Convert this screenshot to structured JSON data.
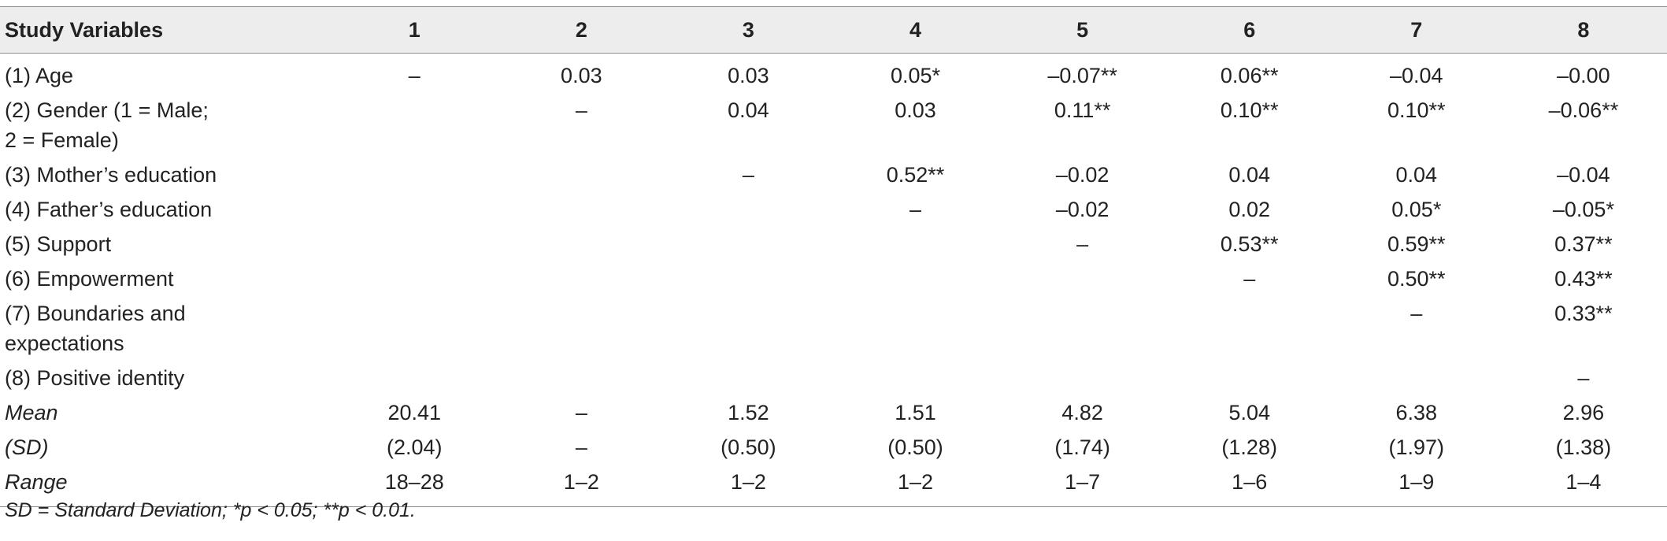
{
  "table": {
    "headers": [
      "Study Variables",
      "1",
      "2",
      "3",
      "4",
      "5",
      "6",
      "7",
      "8"
    ],
    "rows": [
      {
        "label": "(1) Age",
        "italic": false,
        "cells": [
          "–",
          "0.03",
          "0.03",
          "0.05*",
          "–0.07**",
          "0.06**",
          "–0.04",
          "–0.00"
        ]
      },
      {
        "label": "(2) Gender (1 = Male;\n2 =  Female)",
        "italic": false,
        "cells": [
          "",
          "–",
          "0.04",
          "0.03",
          "0.11**",
          "0.10**",
          "0.10**",
          "–0.06**"
        ]
      },
      {
        "label": "(3) Mother’s education",
        "italic": false,
        "cells": [
          "",
          "",
          "–",
          "0.52**",
          "–0.02",
          "0.04",
          "0.04",
          "–0.04"
        ]
      },
      {
        "label": "(4) Father’s education",
        "italic": false,
        "cells": [
          "",
          "",
          "",
          "–",
          "–0.02",
          "0.02",
          "0.05*",
          "–0.05*"
        ]
      },
      {
        "label": "(5) Support",
        "italic": false,
        "cells": [
          "",
          "",
          "",
          "",
          "–",
          "0.53**",
          "0.59**",
          "0.37**"
        ]
      },
      {
        "label": "(6) Empowerment",
        "italic": false,
        "cells": [
          "",
          "",
          "",
          "",
          "",
          "–",
          "0.50**",
          "0.43**"
        ]
      },
      {
        "label": "(7) Boundaries and\nexpectations",
        "italic": false,
        "cells": [
          "",
          "",
          "",
          "",
          "",
          "",
          "–",
          "0.33**"
        ]
      },
      {
        "label": "(8) Positive identity",
        "italic": false,
        "cells": [
          "",
          "",
          "",
          "",
          "",
          "",
          "",
          "–"
        ]
      },
      {
        "label": "Mean",
        "italic": true,
        "cells": [
          "20.41",
          "–",
          "1.52",
          "1.51",
          "4.82",
          "5.04",
          "6.38",
          "2.96"
        ]
      },
      {
        "label": "(SD)",
        "italic": true,
        "cells": [
          "(2.04)",
          "–",
          "(0.50)",
          "(0.50)",
          "(1.74)",
          "(1.28)",
          "(1.97)",
          "(1.38)"
        ]
      },
      {
        "label": "Range",
        "italic": true,
        "cells": [
          "18–28",
          "1–2",
          "1–2",
          "1–2",
          "1–7",
          "1–6",
          "1–9",
          "1–4"
        ]
      }
    ]
  },
  "note": "SD = Standard Deviation; *p < 0.05; **p < 0.01."
}
